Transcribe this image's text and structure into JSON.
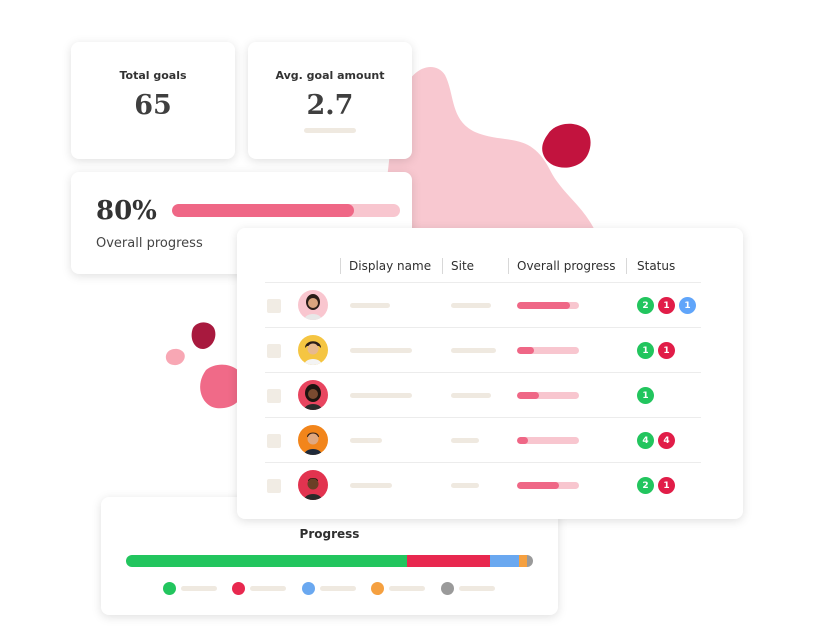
{
  "stats": {
    "total_goals": {
      "label": "Total goals",
      "value": "65"
    },
    "avg_goal_amount": {
      "label": "Avg. goal amount",
      "value": "2.7"
    }
  },
  "overall": {
    "percent_label": "80%",
    "label": "Overall progress",
    "fill_fraction": 0.8
  },
  "table": {
    "headers": [
      "Display name",
      "Site",
      "Overall progress",
      "Status"
    ],
    "rows": [
      {
        "progress": 0.85,
        "badges": [
          {
            "count": "2",
            "color": "#22c55e"
          },
          {
            "count": "1",
            "color": "#e11d48"
          },
          {
            "count": "1",
            "color": "#60a5fa"
          }
        ]
      },
      {
        "progress": 0.27,
        "badges": [
          {
            "count": "1",
            "color": "#22c55e"
          },
          {
            "count": "1",
            "color": "#e11d48"
          }
        ]
      },
      {
        "progress": 0.35,
        "badges": [
          {
            "count": "1",
            "color": "#22c55e"
          }
        ]
      },
      {
        "progress": 0.18,
        "badges": [
          {
            "count": "4",
            "color": "#22c55e"
          },
          {
            "count": "4",
            "color": "#e11d48"
          }
        ]
      },
      {
        "progress": 0.68,
        "badges": [
          {
            "count": "2",
            "color": "#22c55e"
          },
          {
            "count": "1",
            "color": "#e11d48"
          }
        ]
      }
    ]
  },
  "progress_panel": {
    "title": "Progress",
    "segments": [
      {
        "fraction": 0.69,
        "color": "#22c55e"
      },
      {
        "fraction": 0.205,
        "color": "#e8284f"
      },
      {
        "fraction": 0.07,
        "color": "#6aa8f0"
      },
      {
        "fraction": 0.02,
        "color": "#f5a040"
      },
      {
        "fraction": 0.015,
        "color": "#9a9a9a"
      }
    ],
    "legend_colors": [
      "#22c55e",
      "#e8284f",
      "#6aa8f0",
      "#f5a040",
      "#9a9a9a"
    ]
  },
  "colors": {
    "accent_pink": "#ef6786",
    "light_pink": "#f8c6cf",
    "blob_pink": "#f8c8d0",
    "blob_crimson": "#c2133e",
    "placeholder": "#efe9e0"
  }
}
